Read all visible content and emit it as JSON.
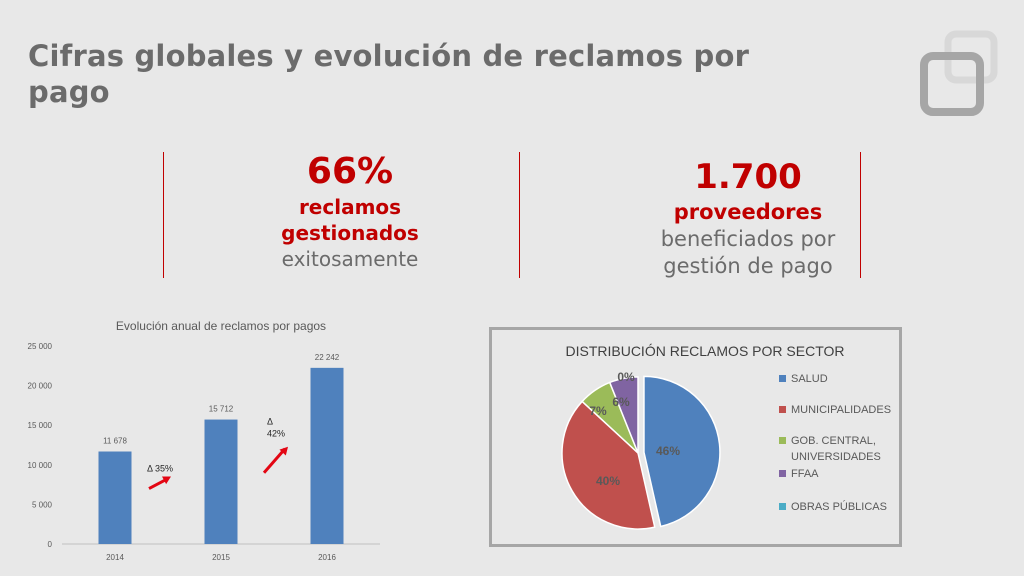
{
  "slide": {
    "title": "Cifras globales y evolución de reclamos por pago"
  },
  "stats": [
    {
      "value": "66%",
      "line1": "reclamos",
      "line2": "gestionados",
      "line3": "exitosamente"
    },
    {
      "value": "1.700",
      "line1": "proveedores",
      "line2": "beneficiados por",
      "line3": "gestión de pago"
    }
  ],
  "colors": {
    "accent": "#c00000",
    "title_gray": "#6b6b6b",
    "bar": "#4f81bd"
  },
  "icons": [
    "squares-logo-icon",
    "arrow-up-right-icon"
  ],
  "chart_data": [
    {
      "type": "bar",
      "title": "Evolución anual de reclamos por pagos",
      "categories": [
        "2014",
        "2015",
        "2016"
      ],
      "values": [
        11678,
        15712,
        22242
      ],
      "value_labels": [
        "11 678",
        "15 712",
        "22 242"
      ],
      "ylim": [
        0,
        25000
      ],
      "yticks": [
        0,
        5000,
        10000,
        15000,
        20000,
        25000
      ],
      "ytick_labels": [
        "0",
        "5 000",
        "10 000",
        "15 000",
        "20 000",
        "25 000"
      ],
      "grid": false,
      "annotations": [
        "Δ 35%",
        "Δ 42%"
      ],
      "annotation_labels": [
        [
          "Δ 35%"
        ],
        [
          "Δ",
          "42%"
        ]
      ]
    },
    {
      "type": "pie",
      "title": "DISTRIBUCIÓN RECLAMOS POR SECTOR",
      "categories": [
        "SALUD",
        "MUNICIPALIDADES",
        "GOB. CENTRAL, UNIVERSIDADES",
        "FFAA",
        "OBRAS PÚBLICAS"
      ],
      "legend_lines": [
        [
          "SALUD"
        ],
        [
          "MUNICIPALIDADES"
        ],
        [
          "GOB. CENTRAL,",
          "UNIVERSIDADES"
        ],
        [
          "FFAA"
        ],
        [
          "OBRAS PÚBLICAS"
        ]
      ],
      "values": [
        46,
        40,
        7,
        6,
        0
      ],
      "value_labels": [
        "46%",
        "40%",
        "7%",
        "6%",
        "0%"
      ],
      "colors": [
        "#4f81bd",
        "#c0504d",
        "#9bbb59",
        "#8064a2",
        "#4bacc6"
      ],
      "legend": "right"
    }
  ]
}
